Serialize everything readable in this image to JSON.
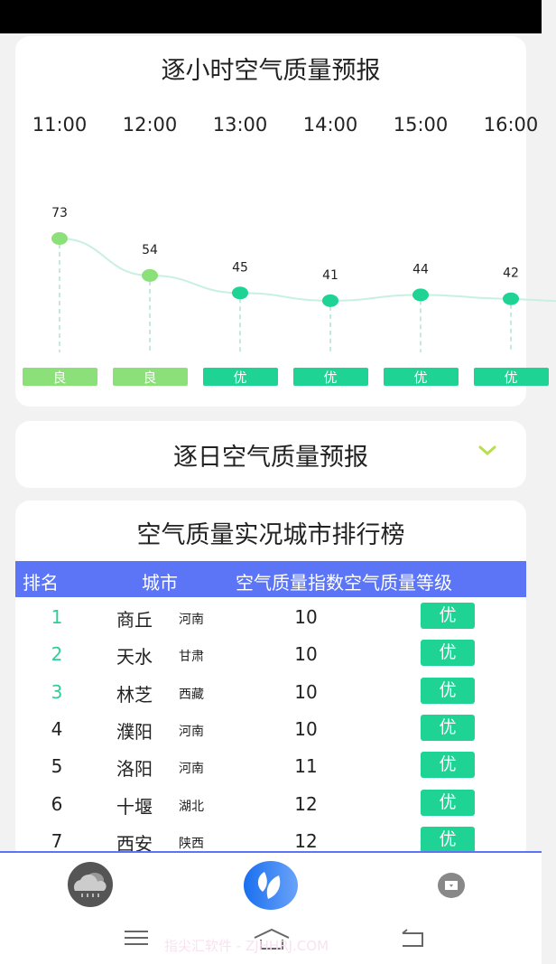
{
  "hourly": {
    "title": "逐小时空气质量预报",
    "chart_data": {
      "type": "line",
      "x": [
        "11:00",
        "12:00",
        "13:00",
        "14:00",
        "15:00",
        "16:00"
      ],
      "values": [
        73,
        54,
        45,
        41,
        44,
        42
      ],
      "levels": [
        "良",
        "良",
        "优",
        "优",
        "优",
        "优"
      ],
      "level_colors": {
        "良": "#8be07a",
        "优": "#1ed394"
      },
      "line_color": "#c8f0e0"
    }
  },
  "daily": {
    "title": "逐日空气质量预报",
    "chevron_color": "#b6e04a"
  },
  "ranking": {
    "title": "空气质量实况城市排行榜",
    "header_color": "#5b75f6",
    "columns": [
      "排名",
      "城市",
      "空气质量指数",
      "空气质量等级"
    ],
    "rows": [
      {
        "rank": "1",
        "city": "商丘",
        "province": "河南",
        "aqi": "10",
        "level": "优"
      },
      {
        "rank": "2",
        "city": "天水",
        "province": "甘肃",
        "aqi": "10",
        "level": "优"
      },
      {
        "rank": "3",
        "city": "林芝",
        "province": "西藏",
        "aqi": "10",
        "level": "优"
      },
      {
        "rank": "4",
        "city": "濮阳",
        "province": "河南",
        "aqi": "10",
        "level": "优"
      },
      {
        "rank": "5",
        "city": "洛阳",
        "province": "河南",
        "aqi": "11",
        "level": "优"
      },
      {
        "rank": "6",
        "city": "十堰",
        "province": "湖北",
        "aqi": "12",
        "level": "优"
      },
      {
        "rank": "7",
        "city": "西安",
        "province": "陕西",
        "aqi": "12",
        "level": "优"
      }
    ],
    "top_rank_color": "#2ecf94"
  },
  "bottom_nav": {
    "items": [
      {
        "icon": "weather-cloud-rain-icon"
      },
      {
        "icon": "leaf-icon",
        "active": true
      },
      {
        "icon": "tv-icon"
      }
    ]
  },
  "watermark": "指尖汇软件 - ZJHHRJ.COM"
}
